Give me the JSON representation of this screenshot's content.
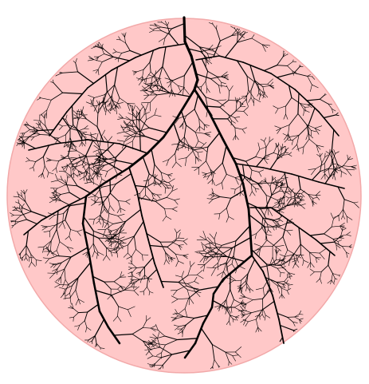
{
  "figure": {
    "subject": "branching-tree-in-disc",
    "colors": {
      "background": "#ffffff",
      "disc_fill": "#ffc8c8",
      "disc_stroke": "#f2a9a9",
      "branch": "#000000"
    },
    "generator": {
      "seed": 7,
      "main_depth": 6,
      "twig_density": 1
    }
  }
}
